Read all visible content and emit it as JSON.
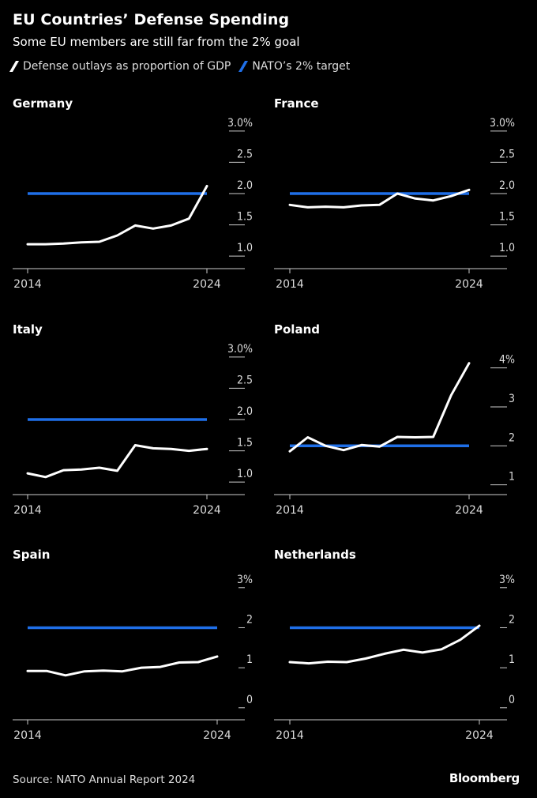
{
  "header": {
    "title": "EU Countries’ Defense Spending",
    "subtitle": "Some EU members are still far from the 2% goal"
  },
  "legend": {
    "items": [
      {
        "label": "Defense outlays as proportion of GDP",
        "color": "#ffffff"
      },
      {
        "label": "NATO’s 2% target",
        "color": "#1f6fe8"
      }
    ]
  },
  "colors": {
    "line": "#ffffff",
    "target": "#1f6fe8",
    "axis": "#cccccc",
    "tick_text": "#dddddd"
  },
  "chart_data": [
    {
      "type": "line",
      "title": "Germany",
      "x": [
        2014,
        2015,
        2016,
        2017,
        2018,
        2019,
        2020,
        2021,
        2022,
        2023,
        2024
      ],
      "series": [
        {
          "name": "Defense outlays as proportion of GDP",
          "values": [
            1.19,
            1.19,
            1.2,
            1.22,
            1.23,
            1.33,
            1.49,
            1.44,
            1.49,
            1.6,
            2.12
          ]
        },
        {
          "name": "NATO’s 2% target",
          "values": [
            2,
            2,
            2,
            2,
            2,
            2,
            2,
            2,
            2,
            2,
            2
          ]
        }
      ],
      "ylim": [
        0.8,
        3.2
      ],
      "yticks": [
        1.0,
        1.5,
        2.0,
        2.5,
        3.0
      ],
      "ytick_labels": [
        "1.0",
        "1.5",
        "2.0",
        "2.5",
        "3.0%"
      ],
      "xtick_labels": [
        "2014",
        "2024"
      ]
    },
    {
      "type": "line",
      "title": "France",
      "x": [
        2014,
        2015,
        2016,
        2017,
        2018,
        2019,
        2020,
        2021,
        2022,
        2023,
        2024
      ],
      "series": [
        {
          "name": "Defense outlays as proportion of GDP",
          "values": [
            1.82,
            1.78,
            1.79,
            1.78,
            1.81,
            1.82,
            2.0,
            1.92,
            1.89,
            1.96,
            2.06
          ]
        },
        {
          "name": "NATO’s 2% target",
          "values": [
            2,
            2,
            2,
            2,
            2,
            2,
            2,
            2,
            2,
            2,
            2
          ]
        }
      ],
      "ylim": [
        0.8,
        3.2
      ],
      "yticks": [
        1.0,
        1.5,
        2.0,
        2.5,
        3.0
      ],
      "ytick_labels": [
        "1.0",
        "1.5",
        "2.0",
        "2.5",
        "3.0%"
      ],
      "xtick_labels": [
        "2014",
        "2024"
      ]
    },
    {
      "type": "line",
      "title": "Italy",
      "x": [
        2014,
        2015,
        2016,
        2017,
        2018,
        2019,
        2020,
        2021,
        2022,
        2023,
        2024
      ],
      "series": [
        {
          "name": "Defense outlays as proportion of GDP",
          "values": [
            1.14,
            1.08,
            1.19,
            1.2,
            1.23,
            1.18,
            1.59,
            1.54,
            1.53,
            1.5,
            1.53
          ]
        },
        {
          "name": "NATO’s 2% target",
          "values": [
            2,
            2,
            2,
            2,
            2,
            2,
            2,
            2,
            2,
            2,
            2
          ]
        }
      ],
      "ylim": [
        0.8,
        3.2
      ],
      "yticks": [
        1.0,
        1.5,
        2.0,
        2.5,
        3.0
      ],
      "ytick_labels": [
        "1.0",
        "1.5",
        "2.0",
        "2.5",
        "3.0%"
      ],
      "xtick_labels": [
        "2014",
        "2024"
      ]
    },
    {
      "type": "line",
      "title": "Poland",
      "x": [
        2014,
        2015,
        2016,
        2017,
        2018,
        2019,
        2020,
        2021,
        2022,
        2023,
        2024
      ],
      "series": [
        {
          "name": "Defense outlays as proportion of GDP",
          "values": [
            1.86,
            2.22,
            2.0,
            1.89,
            2.02,
            1.98,
            2.23,
            2.22,
            2.23,
            3.3,
            4.12
          ]
        },
        {
          "name": "NATO’s 2% target",
          "values": [
            2,
            2,
            2,
            2,
            2,
            2,
            2,
            2,
            2,
            2,
            2
          ]
        }
      ],
      "ylim": [
        0.75,
        4.6
      ],
      "yticks": [
        1,
        2,
        3,
        4
      ],
      "ytick_labels": [
        "1",
        "2",
        "3",
        "4%"
      ],
      "xtick_labels": [
        "2014",
        "2024"
      ]
    },
    {
      "type": "line",
      "title": "Spain",
      "x": [
        2014,
        2015,
        2016,
        2017,
        2018,
        2019,
        2020,
        2021,
        2022,
        2023,
        2024
      ],
      "series": [
        {
          "name": "Defense outlays as proportion of GDP",
          "values": [
            0.92,
            0.92,
            0.81,
            0.91,
            0.93,
            0.91,
            1.0,
            1.02,
            1.13,
            1.14,
            1.28
          ]
        },
        {
          "name": "NATO’s 2% target",
          "values": [
            2,
            2,
            2,
            2,
            2,
            2,
            2,
            2,
            2,
            2,
            2
          ]
        }
      ],
      "ylim": [
        -0.3,
        3.45
      ],
      "yticks": [
        0,
        1,
        2,
        3
      ],
      "ytick_labels": [
        "0",
        "1",
        "2",
        "3%"
      ],
      "xtick_labels": [
        "2014",
        "2024"
      ]
    },
    {
      "type": "line",
      "title": "Netherlands",
      "x": [
        2014,
        2015,
        2016,
        2017,
        2018,
        2019,
        2020,
        2021,
        2022,
        2023,
        2024
      ],
      "series": [
        {
          "name": "Defense outlays as proportion of GDP",
          "values": [
            1.14,
            1.11,
            1.15,
            1.14,
            1.23,
            1.35,
            1.45,
            1.38,
            1.46,
            1.7,
            2.05
          ]
        },
        {
          "name": "NATO’s 2% target",
          "values": [
            2,
            2,
            2,
            2,
            2,
            2,
            2,
            2,
            2,
            2,
            2
          ]
        }
      ],
      "ylim": [
        -0.3,
        3.45
      ],
      "yticks": [
        0,
        1,
        2,
        3
      ],
      "ytick_labels": [
        "0",
        "1",
        "2",
        "3%"
      ],
      "xtick_labels": [
        "2014",
        "2024"
      ]
    }
  ],
  "footer": {
    "source": "Source: NATO Annual Report 2024",
    "logo": "Bloomberg"
  }
}
